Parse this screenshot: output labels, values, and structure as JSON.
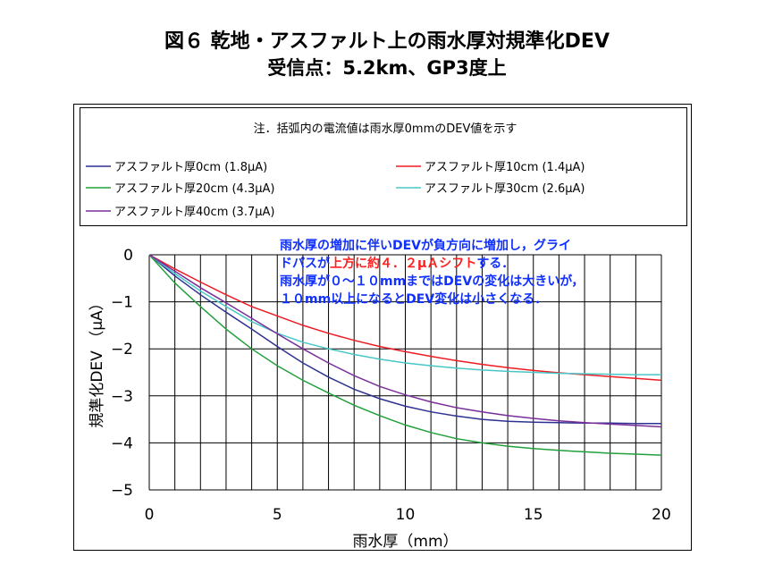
{
  "title": "図６ 乾地・アスファルト上の雨水厚対規準化DEV",
  "subtitle": "受信点：5.2km、GP3度上",
  "chart_data": {
    "type": "line",
    "note": "注．括弧内の電流値は雨水厚0mmのDEV値を示す",
    "annotation": [
      "雨水厚の増加に伴いDEVが負方向に増加し，グライ",
      "ドパスが上方に約４．２μＡシフトする．",
      "雨水厚が０～１０mmまではDEVの変化は大きいが，",
      "１０mm以上になるとDEV変化は小さくなる．"
    ],
    "annotation_highlight": "上方に約４．２μＡシフト",
    "xlabel": "雨水厚（mm）",
    "ylabel": "規準化DEV （μA）",
    "xlim": [
      0,
      20
    ],
    "ylim": [
      -5,
      0
    ],
    "xticks": [
      0,
      5,
      10,
      15,
      20
    ],
    "yticks": [
      0,
      -1,
      -2,
      -3,
      -4,
      -5
    ],
    "grid": true,
    "legend": "top",
    "series": [
      {
        "name": "アスファルト厚0cm (1.8μA)",
        "color": "#2e3192",
        "x": [
          0,
          1,
          2,
          3,
          4,
          5,
          6,
          7,
          8,
          9,
          10,
          11,
          12,
          13,
          14,
          15,
          16,
          17,
          18,
          19,
          20
        ],
        "y": [
          0,
          -0.45,
          -0.85,
          -1.22,
          -1.58,
          -1.95,
          -2.3,
          -2.6,
          -2.86,
          -3.06,
          -3.22,
          -3.34,
          -3.43,
          -3.5,
          -3.54,
          -3.56,
          -3.57,
          -3.58,
          -3.58,
          -3.59,
          -3.59
        ]
      },
      {
        "name": "アスファルト厚10cm (1.4μA)",
        "color": "#ed1c24",
        "x": [
          0,
          1,
          2,
          3,
          4,
          5,
          6,
          7,
          8,
          9,
          10,
          11,
          12,
          13,
          14,
          15,
          16,
          17,
          18,
          19,
          20
        ],
        "y": [
          0,
          -0.3,
          -0.58,
          -0.85,
          -1.1,
          -1.3,
          -1.5,
          -1.67,
          -1.82,
          -1.95,
          -2.06,
          -2.16,
          -2.25,
          -2.33,
          -2.4,
          -2.46,
          -2.51,
          -2.55,
          -2.59,
          -2.63,
          -2.67
        ]
      },
      {
        "name": "アスファルト厚20cm (4.3μA)",
        "color": "#22a03c",
        "x": [
          0,
          1,
          2,
          3,
          4,
          5,
          6,
          7,
          8,
          9,
          10,
          11,
          12,
          13,
          14,
          15,
          16,
          17,
          18,
          19,
          20
        ],
        "y": [
          0,
          -0.6,
          -1.1,
          -1.58,
          -2.0,
          -2.36,
          -2.67,
          -2.94,
          -3.2,
          -3.42,
          -3.62,
          -3.78,
          -3.91,
          -4.0,
          -4.07,
          -4.12,
          -4.16,
          -4.19,
          -4.22,
          -4.24,
          -4.26
        ]
      },
      {
        "name": "アスファルト厚30cm (2.6μA)",
        "color": "#49c7c7",
        "x": [
          0,
          1,
          2,
          3,
          4,
          5,
          6,
          7,
          8,
          9,
          10,
          11,
          12,
          13,
          14,
          15,
          16,
          17,
          18,
          19,
          20
        ],
        "y": [
          0,
          -0.4,
          -0.77,
          -1.1,
          -1.42,
          -1.67,
          -1.86,
          -2.0,
          -2.12,
          -2.22,
          -2.3,
          -2.36,
          -2.41,
          -2.45,
          -2.48,
          -2.5,
          -2.52,
          -2.53,
          -2.54,
          -2.55,
          -2.55
        ]
      },
      {
        "name": "アスファルト厚40cm (3.7μA)",
        "color": "#7a2e9a",
        "x": [
          0,
          1,
          2,
          3,
          4,
          5,
          6,
          7,
          8,
          9,
          10,
          11,
          12,
          13,
          14,
          15,
          16,
          17,
          18,
          19,
          20
        ],
        "y": [
          0,
          -0.35,
          -0.7,
          -1.02,
          -1.35,
          -1.68,
          -2.0,
          -2.3,
          -2.57,
          -2.8,
          -2.98,
          -3.13,
          -3.25,
          -3.34,
          -3.42,
          -3.48,
          -3.53,
          -3.57,
          -3.6,
          -3.63,
          -3.66
        ]
      }
    ]
  }
}
